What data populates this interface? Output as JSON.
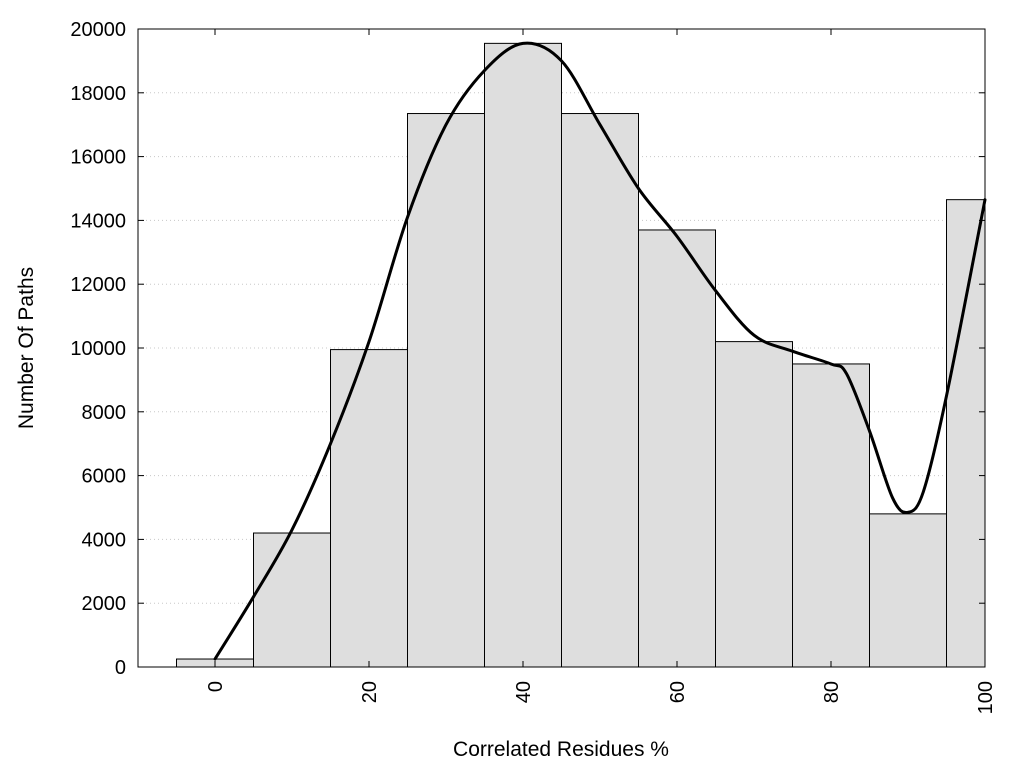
{
  "chart_data": {
    "type": "bar",
    "title": "",
    "xlabel": "Correlated Residues %",
    "ylabel": "Number Of Paths",
    "xlim": [
      -10,
      100
    ],
    "ylim": [
      0,
      20000
    ],
    "x_ticks": [
      0,
      20,
      40,
      60,
      80,
      100
    ],
    "y_ticks": [
      0,
      2000,
      4000,
      6000,
      8000,
      10000,
      12000,
      14000,
      16000,
      18000,
      20000
    ],
    "grid": "horizontal dotted",
    "bar_width": 10,
    "categories": [
      0,
      10,
      20,
      30,
      40,
      50,
      60,
      70,
      80,
      90,
      100
    ],
    "values": [
      250,
      4200,
      9950,
      17350,
      19550,
      17350,
      13700,
      10200,
      9500,
      4800,
      14650
    ],
    "smooth_curve": {
      "x": [
        0,
        5,
        10,
        15,
        20,
        25,
        30,
        35,
        40,
        45,
        50,
        55,
        60,
        65,
        70,
        75,
        80,
        82,
        85,
        88,
        90,
        92,
        95,
        100
      ],
      "y": [
        250,
        2200,
        4300,
        7000,
        10200,
        14100,
        17000,
        18700,
        19550,
        19000,
        17000,
        15000,
        13500,
        11800,
        10400,
        9900,
        9500,
        9200,
        7400,
        5300,
        4850,
        5500,
        8500,
        14650
      ]
    },
    "colors": {
      "bar_fill": "#dedede",
      "bar_stroke": "#000000",
      "curve": "#000000"
    }
  }
}
